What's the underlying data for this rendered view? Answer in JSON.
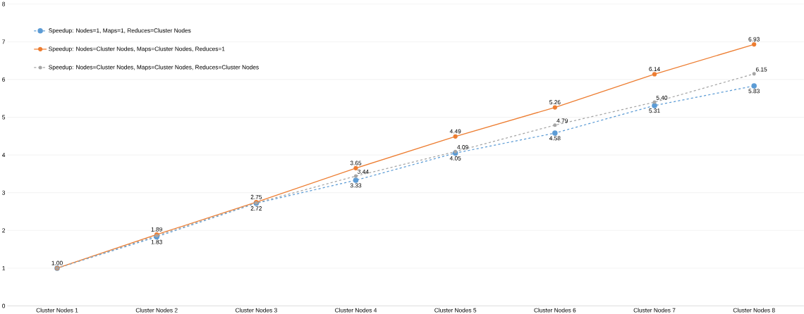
{
  "chart_data": {
    "type": "line",
    "categories": [
      "Cluster Nodes 1",
      "Cluster Nodes 2",
      "Cluster Nodes 3",
      "Cluster Nodes 4",
      "Cluster Nodes 5",
      "Cluster Nodes 6",
      "Cluster Nodes 7",
      "Cluster Nodes 8"
    ],
    "series": [
      {
        "name": "Speedup: Nodes=1, Maps=1, Reduces=Cluster Nodes",
        "color": "#5b9bd5",
        "line_style": "dashed",
        "values": [
          1.0,
          1.83,
          2.72,
          3.33,
          4.05,
          4.58,
          5.31,
          5.83
        ],
        "value_labels": [
          null,
          "1.83",
          "2.72",
          "3.33",
          "4.05",
          "4.58",
          "5.31",
          "5.83"
        ]
      },
      {
        "name": "Speedup: Nodes=Cluster Nodes, Maps=Cluster Nodes, Reduces=1",
        "color": "#ed7d31",
        "line_style": "solid",
        "values": [
          1.0,
          1.89,
          2.75,
          3.65,
          4.49,
          5.26,
          6.14,
          6.93
        ],
        "value_labels": [
          "1.00",
          "1.89",
          "2.75",
          "3.65",
          "4.49",
          "5.26",
          "6.14",
          "6.93"
        ]
      },
      {
        "name": "Speedup: Nodes=Cluster Nodes, Maps=Cluster Nodes, Reduces=Cluster Nodes",
        "color": "#a5a5a5",
        "line_style": "dashed",
        "values": [
          1.0,
          1.86,
          2.73,
          3.44,
          4.09,
          4.79,
          5.4,
          6.15
        ],
        "value_labels": [
          null,
          null,
          null,
          "3.44",
          "4.09",
          "4.79",
          "5.40",
          "6.15"
        ]
      }
    ],
    "ylim": [
      0,
      8
    ],
    "yticks": [
      0,
      1,
      2,
      3,
      4,
      5,
      6,
      7,
      8
    ],
    "grid": "y",
    "legend": "top left",
    "marker": "circle"
  }
}
